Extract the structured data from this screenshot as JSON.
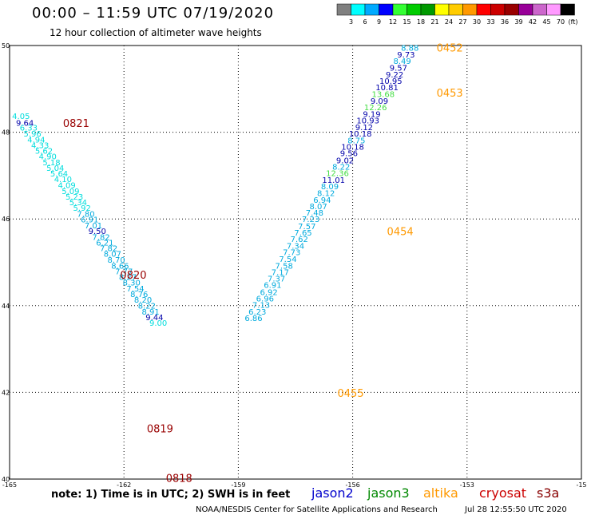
{
  "title": "00:00 – 11:59 UTC 07/19/2020",
  "subtitle": "12 hour collection of altimeter wave heights",
  "note": "note:  1) Time is in UTC;  2) SWH is in feet",
  "credit": "NOAA/NESDIS Center for Satellite Applications and Research",
  "timestamp": "Jul 28 12:55:50 UTC 2020",
  "satellites": [
    {
      "name": "jason2",
      "color": "#0000cc"
    },
    {
      "name": "jason3",
      "color": "#008800"
    },
    {
      "name": "altika",
      "color": "#ff9900"
    },
    {
      "name": "cryosat",
      "color": "#cc0000"
    },
    {
      "name": "s3a",
      "color": "#880000"
    }
  ],
  "colorbar": {
    "unit": "(ft)",
    "labels": [
      "3",
      "6",
      "9",
      "12",
      "15",
      "18",
      "21",
      "24",
      "27",
      "30",
      "33",
      "36",
      "39",
      "42",
      "45",
      "70"
    ],
    "colors": [
      "#808080",
      "#00ffff",
      "#00aaff",
      "#0000ff",
      "#33ff33",
      "#00cc00",
      "#009900",
      "#ffff00",
      "#ffcc00",
      "#ff9900",
      "#ff0000",
      "#cc0000",
      "#990000",
      "#990099",
      "#cc66cc",
      "#ff99ff",
      "#000000"
    ]
  },
  "chart_data": {
    "type": "scatter",
    "xlabel": "",
    "ylabel": "",
    "xlim": [
      -165,
      -150
    ],
    "ylim": [
      40,
      50
    ],
    "x_ticks": [
      "-165",
      "-162",
      "-159",
      "-156",
      "-153",
      "-15"
    ],
    "y_ticks": [
      "40",
      "42",
      "44",
      "46",
      "48",
      "50"
    ],
    "grid": true,
    "time_labels": [
      {
        "text": "0821",
        "lon": -163.6,
        "lat": 48.21,
        "color": "#990000"
      },
      {
        "text": "0820",
        "lon": -162.1,
        "lat": 44.71,
        "color": "#990000"
      },
      {
        "text": "0819",
        "lon": -161.4,
        "lat": 41.17,
        "color": "#990000"
      },
      {
        "text": "0818",
        "lon": -160.9,
        "lat": 40.03,
        "color": "#990000"
      },
      {
        "text": "0452",
        "lon": -153.8,
        "lat": 49.95,
        "color": "#ff9900"
      },
      {
        "text": "0453",
        "lon": -153.8,
        "lat": 48.91,
        "color": "#ff9900"
      },
      {
        "text": "0454",
        "lon": -155.1,
        "lat": 45.72,
        "color": "#ff9900"
      },
      {
        "text": "0455",
        "lon": -156.4,
        "lat": 41.99,
        "color": "#ff9900"
      }
    ],
    "points": [
      {
        "lon": -164.7,
        "lat": 48.38,
        "swh": 4.05,
        "color": "#00dddd"
      },
      {
        "lon": -164.6,
        "lat": 48.22,
        "swh": 9.64,
        "color": "#0000aa"
      },
      {
        "lon": -164.5,
        "lat": 48.11,
        "swh": 6.33,
        "color": "#00dddd"
      },
      {
        "lon": -164.4,
        "lat": 47.97,
        "swh": 5.96,
        "color": "#00dddd"
      },
      {
        "lon": -164.3,
        "lat": 47.84,
        "swh": 4.94,
        "color": "#00dddd"
      },
      {
        "lon": -164.2,
        "lat": 47.71,
        "swh": 4.33,
        "color": "#00dddd"
      },
      {
        "lon": -164.1,
        "lat": 47.58,
        "swh": 5.62,
        "color": "#00dddd"
      },
      {
        "lon": -164.0,
        "lat": 47.45,
        "swh": 4.9,
        "color": "#00dddd"
      },
      {
        "lon": -163.9,
        "lat": 47.31,
        "swh": 5.18,
        "color": "#00dddd"
      },
      {
        "lon": -163.8,
        "lat": 47.18,
        "swh": 5.04,
        "color": "#00dddd"
      },
      {
        "lon": -163.7,
        "lat": 47.05,
        "swh": 5.64,
        "color": "#00dddd"
      },
      {
        "lon": -163.6,
        "lat": 46.92,
        "swh": 4.1,
        "color": "#00dddd"
      },
      {
        "lon": -163.5,
        "lat": 46.79,
        "swh": 4.09,
        "color": "#00dddd"
      },
      {
        "lon": -163.4,
        "lat": 46.65,
        "swh": 5.09,
        "color": "#00dddd"
      },
      {
        "lon": -163.3,
        "lat": 46.52,
        "swh": 5.23,
        "color": "#00dddd"
      },
      {
        "lon": -163.2,
        "lat": 46.39,
        "swh": 5.34,
        "color": "#00dddd"
      },
      {
        "lon": -163.1,
        "lat": 46.26,
        "swh": 5.92,
        "color": "#00dddd"
      },
      {
        "lon": -163.0,
        "lat": 46.12,
        "swh": 7.8,
        "color": "#00aadd"
      },
      {
        "lon": -162.9,
        "lat": 45.99,
        "swh": 6.91,
        "color": "#00aadd"
      },
      {
        "lon": -162.8,
        "lat": 45.86,
        "swh": 7.01,
        "color": "#00aadd"
      },
      {
        "lon": -162.7,
        "lat": 45.73,
        "swh": 9.5,
        "color": "#0000aa"
      },
      {
        "lon": -162.6,
        "lat": 45.59,
        "swh": 7.82,
        "color": "#00aadd"
      },
      {
        "lon": -162.5,
        "lat": 45.46,
        "swh": 6.21,
        "color": "#00aadd"
      },
      {
        "lon": -162.4,
        "lat": 45.33,
        "swh": 7.82,
        "color": "#00aadd"
      },
      {
        "lon": -162.3,
        "lat": 45.2,
        "swh": 8.07,
        "color": "#00aadd"
      },
      {
        "lon": -162.2,
        "lat": 45.06,
        "swh": 8.7,
        "color": "#00aadd"
      },
      {
        "lon": -162.1,
        "lat": 44.93,
        "swh": 8.66,
        "color": "#00aadd"
      },
      {
        "lon": -162.0,
        "lat": 44.8,
        "swh": 7.77,
        "color": "#00aadd"
      },
      {
        "lon": -161.9,
        "lat": 44.67,
        "swh": 8.27,
        "color": "#00aadd"
      },
      {
        "lon": -161.8,
        "lat": 44.54,
        "swh": 8.3,
        "color": "#00aadd"
      },
      {
        "lon": -161.7,
        "lat": 44.4,
        "swh": 7.54,
        "color": "#00aadd"
      },
      {
        "lon": -161.6,
        "lat": 44.27,
        "swh": 8.76,
        "color": "#00aadd"
      },
      {
        "lon": -161.5,
        "lat": 44.14,
        "swh": 8.2,
        "color": "#00aadd"
      },
      {
        "lon": -161.4,
        "lat": 44.01,
        "swh": 8.22,
        "color": "#00aadd"
      },
      {
        "lon": -161.3,
        "lat": 43.87,
        "swh": 8.91,
        "color": "#00aadd"
      },
      {
        "lon": -161.2,
        "lat": 43.74,
        "swh": 9.44,
        "color": "#0000aa"
      },
      {
        "lon": -161.1,
        "lat": 43.61,
        "swh": 9.0,
        "color": "#00dddd"
      },
      {
        "lon": -154.5,
        "lat": 49.95,
        "swh": 8.88,
        "color": "#00aadd"
      },
      {
        "lon": -154.6,
        "lat": 49.8,
        "swh": 9.73,
        "color": "#0000aa"
      },
      {
        "lon": -154.7,
        "lat": 49.65,
        "swh": 8.49,
        "color": "#00aadd"
      },
      {
        "lon": -154.8,
        "lat": 49.49,
        "swh": 9.57,
        "color": "#0000aa"
      },
      {
        "lon": -154.9,
        "lat": 49.34,
        "swh": 9.22,
        "color": "#0000aa"
      },
      {
        "lon": -155.0,
        "lat": 49.19,
        "swh": 10.95,
        "color": "#0000aa"
      },
      {
        "lon": -155.1,
        "lat": 49.04,
        "swh": 10.81,
        "color": "#0000aa"
      },
      {
        "lon": -155.2,
        "lat": 48.89,
        "swh": 13.68,
        "color": "#44dd44"
      },
      {
        "lon": -155.3,
        "lat": 48.73,
        "swh": 9.09,
        "color": "#0000aa"
      },
      {
        "lon": -155.4,
        "lat": 48.58,
        "swh": 12.26,
        "color": "#44dd44"
      },
      {
        "lon": -155.5,
        "lat": 48.43,
        "swh": 9.19,
        "color": "#0000aa"
      },
      {
        "lon": -155.6,
        "lat": 48.28,
        "swh": 10.93,
        "color": "#0000aa"
      },
      {
        "lon": -155.7,
        "lat": 48.12,
        "swh": 9.12,
        "color": "#0000aa"
      },
      {
        "lon": -155.8,
        "lat": 47.97,
        "swh": 10.18,
        "color": "#0000aa"
      },
      {
        "lon": -155.9,
        "lat": 47.82,
        "swh": 8.75,
        "color": "#00aadd"
      },
      {
        "lon": -156.0,
        "lat": 47.67,
        "swh": 10.18,
        "color": "#0000aa"
      },
      {
        "lon": -156.1,
        "lat": 47.52,
        "swh": 9.56,
        "color": "#0000aa"
      },
      {
        "lon": -156.2,
        "lat": 47.36,
        "swh": 9.02,
        "color": "#0000aa"
      },
      {
        "lon": -156.3,
        "lat": 47.21,
        "swh": 8.22,
        "color": "#00aadd"
      },
      {
        "lon": -156.4,
        "lat": 47.06,
        "swh": 12.36,
        "color": "#44dd44"
      },
      {
        "lon": -156.5,
        "lat": 46.91,
        "swh": 11.01,
        "color": "#0000aa"
      },
      {
        "lon": -156.6,
        "lat": 46.76,
        "swh": 8.09,
        "color": "#00aadd"
      },
      {
        "lon": -156.7,
        "lat": 46.6,
        "swh": 8.12,
        "color": "#00aadd"
      },
      {
        "lon": -156.8,
        "lat": 46.45,
        "swh": 6.94,
        "color": "#00aadd"
      },
      {
        "lon": -156.9,
        "lat": 46.3,
        "swh": 8.07,
        "color": "#00aadd"
      },
      {
        "lon": -157.0,
        "lat": 46.15,
        "swh": 7.48,
        "color": "#00aadd"
      },
      {
        "lon": -157.1,
        "lat": 46.0,
        "swh": 7.23,
        "color": "#00aadd"
      },
      {
        "lon": -157.2,
        "lat": 45.84,
        "swh": 7.57,
        "color": "#00aadd"
      },
      {
        "lon": -157.3,
        "lat": 45.69,
        "swh": 7.65,
        "color": "#00aadd"
      },
      {
        "lon": -157.4,
        "lat": 45.54,
        "swh": 7.62,
        "color": "#00aadd"
      },
      {
        "lon": -157.5,
        "lat": 45.39,
        "swh": 7.34,
        "color": "#00aadd"
      },
      {
        "lon": -157.6,
        "lat": 45.24,
        "swh": 7.73,
        "color": "#00aadd"
      },
      {
        "lon": -157.7,
        "lat": 45.08,
        "swh": 7.54,
        "color": "#00aadd"
      },
      {
        "lon": -157.8,
        "lat": 44.93,
        "swh": 7.58,
        "color": "#00aadd"
      },
      {
        "lon": -157.9,
        "lat": 44.78,
        "swh": 7.17,
        "color": "#00aadd"
      },
      {
        "lon": -158.0,
        "lat": 44.63,
        "swh": 7.37,
        "color": "#00aadd"
      },
      {
        "lon": -158.1,
        "lat": 44.48,
        "swh": 6.91,
        "color": "#00aadd"
      },
      {
        "lon": -158.2,
        "lat": 44.32,
        "swh": 6.92,
        "color": "#00aadd"
      },
      {
        "lon": -158.3,
        "lat": 44.17,
        "swh": 6.96,
        "color": "#00aadd"
      },
      {
        "lon": -158.4,
        "lat": 44.02,
        "swh": 7.13,
        "color": "#00aadd"
      },
      {
        "lon": -158.5,
        "lat": 43.87,
        "swh": 6.23,
        "color": "#00aadd"
      },
      {
        "lon": -158.6,
        "lat": 43.72,
        "swh": 6.86,
        "color": "#00aadd"
      }
    ]
  }
}
